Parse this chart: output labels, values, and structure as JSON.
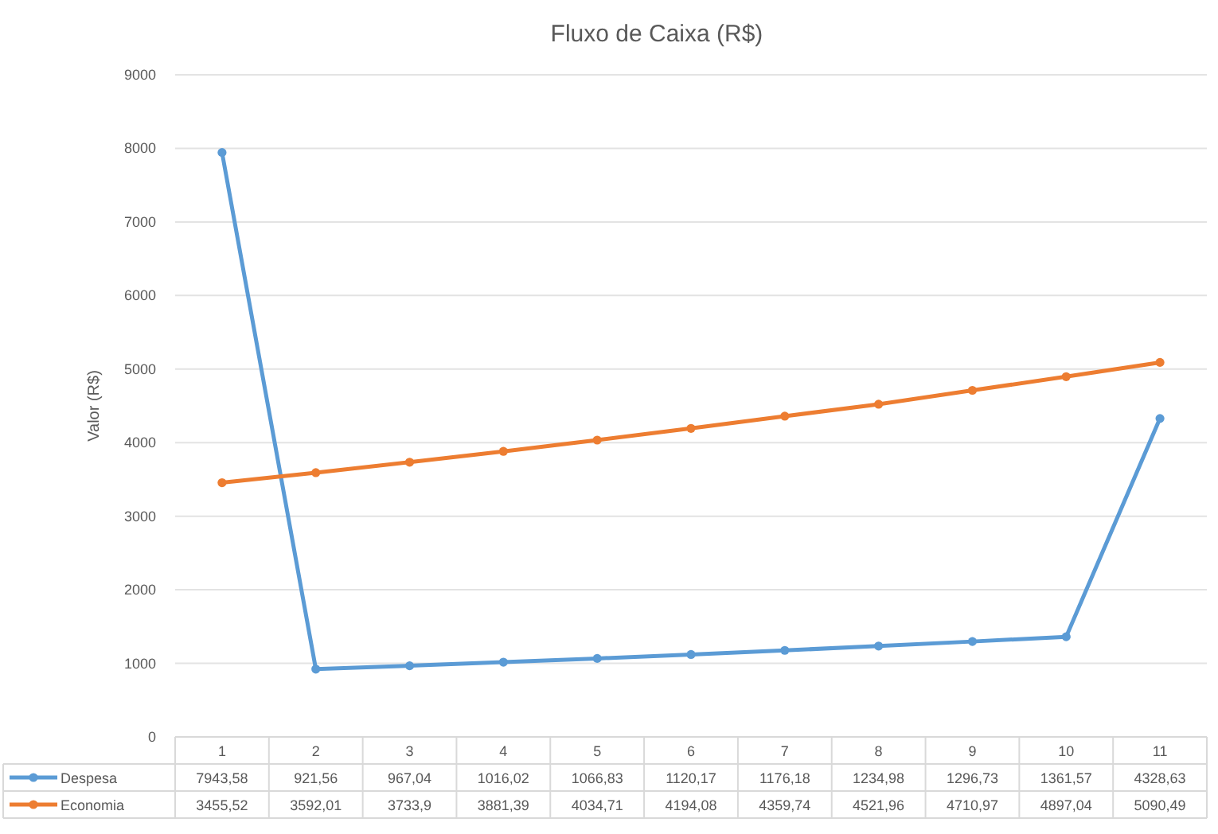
{
  "chart_data": {
    "type": "line",
    "title": "Fluxo de Caixa (R$)",
    "ylabel": "Valor (R$)",
    "categories": [
      "1",
      "2",
      "3",
      "4",
      "5",
      "6",
      "7",
      "8",
      "9",
      "10",
      "11"
    ],
    "series": [
      {
        "name": "Despesa",
        "color": "#5b9bd5",
        "values": [
          7943.58,
          921.56,
          967.04,
          1016.02,
          1066.83,
          1120.17,
          1176.18,
          1234.98,
          1296.73,
          1361.57,
          4328.63
        ],
        "value_labels": [
          "7943,58",
          "921,56",
          "967,04",
          "1016,02",
          "1066,83",
          "1120,17",
          "1176,18",
          "1234,98",
          "1296,73",
          "1361,57",
          "4328,63"
        ]
      },
      {
        "name": "Economia",
        "color": "#ed7d31",
        "values": [
          3455.52,
          3592.01,
          3733.9,
          3881.39,
          4034.71,
          4194.08,
          4359.74,
          4521.96,
          4710.97,
          4897.04,
          5090.49
        ],
        "value_labels": [
          "3455,52",
          "3592,01",
          "3733,9",
          "3881,39",
          "4034,71",
          "4194,08",
          "4359,74",
          "4521,96",
          "4710,97",
          "4897,04",
          "5090,49"
        ]
      }
    ],
    "ylim": [
      0,
      9000
    ],
    "yticks": [
      0,
      1000,
      2000,
      3000,
      4000,
      5000,
      6000,
      7000,
      8000,
      9000
    ],
    "grid": "y",
    "legend": "bottom",
    "marker": "circle",
    "line_style": "solid"
  }
}
